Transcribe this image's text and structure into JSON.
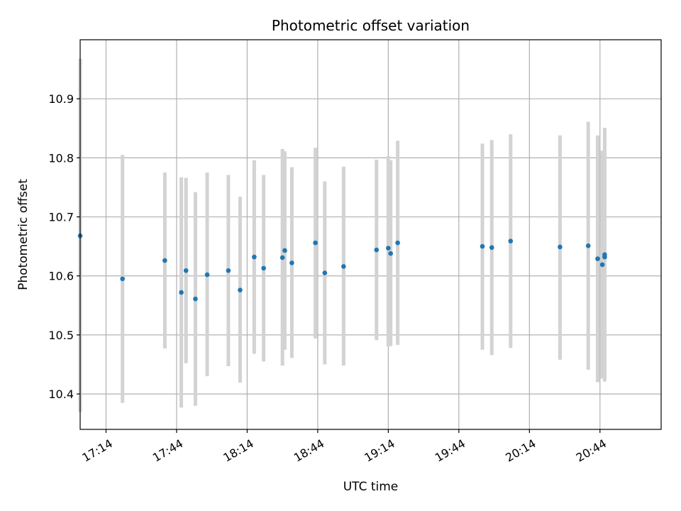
{
  "chart_data": {
    "type": "scatter",
    "title": "Photometric offset variation",
    "xlabel": "UTC time",
    "ylabel": "Photometric offset",
    "x_ticks": [
      "17:14",
      "17:44",
      "18:14",
      "18:44",
      "19:14",
      "19:44",
      "20:14",
      "20:44"
    ],
    "y_ticks": [
      "10.4",
      "10.5",
      "10.6",
      "10.7",
      "10.8",
      "10.9"
    ],
    "xlim": [
      "17:03",
      "21:10"
    ],
    "ylim": [
      10.34,
      11.0
    ],
    "grid": true,
    "colors": {
      "point": "#1f77b4",
      "errorbar": "#d3d3d3",
      "grid": "#b0b0b0"
    },
    "points": [
      {
        "t": "17:03",
        "y": 10.668,
        "low": 10.369,
        "high": 10.968
      },
      {
        "t": "17:21",
        "y": 10.595,
        "low": 10.385,
        "high": 10.805
      },
      {
        "t": "17:39",
        "y": 10.626,
        "low": 10.477,
        "high": 10.775
      },
      {
        "t": "17:46",
        "y": 10.572,
        "low": 10.377,
        "high": 10.767
      },
      {
        "t": "17:48",
        "y": 10.609,
        "low": 10.452,
        "high": 10.766
      },
      {
        "t": "17:52",
        "y": 10.561,
        "low": 10.38,
        "high": 10.742
      },
      {
        "t": "17:57",
        "y": 10.602,
        "low": 10.43,
        "high": 10.775
      },
      {
        "t": "18:06",
        "y": 10.609,
        "low": 10.447,
        "high": 10.771
      },
      {
        "t": "18:11",
        "y": 10.576,
        "low": 10.419,
        "high": 10.734
      },
      {
        "t": "18:17",
        "y": 10.632,
        "low": 10.468,
        "high": 10.796
      },
      {
        "t": "18:21",
        "y": 10.613,
        "low": 10.455,
        "high": 10.771
      },
      {
        "t": "18:29",
        "y": 10.631,
        "low": 10.448,
        "high": 10.815
      },
      {
        "t": "18:30",
        "y": 10.643,
        "low": 10.475,
        "high": 10.811
      },
      {
        "t": "18:33",
        "y": 10.622,
        "low": 10.461,
        "high": 10.784
      },
      {
        "t": "18:43",
        "y": 10.656,
        "low": 10.494,
        "high": 10.817
      },
      {
        "t": "18:47",
        "y": 10.605,
        "low": 10.45,
        "high": 10.76
      },
      {
        "t": "18:55",
        "y": 10.616,
        "low": 10.448,
        "high": 10.785
      },
      {
        "t": "19:09",
        "y": 10.644,
        "low": 10.491,
        "high": 10.797
      },
      {
        "t": "19:14",
        "y": 10.647,
        "low": 10.481,
        "high": 10.803
      },
      {
        "t": "19:15",
        "y": 10.638,
        "low": 10.481,
        "high": 10.796
      },
      {
        "t": "19:18",
        "y": 10.656,
        "low": 10.483,
        "high": 10.829
      },
      {
        "t": "19:54",
        "y": 10.65,
        "low": 10.475,
        "high": 10.824
      },
      {
        "t": "19:58",
        "y": 10.648,
        "low": 10.466,
        "high": 10.83
      },
      {
        "t": "20:06",
        "y": 10.659,
        "low": 10.478,
        "high": 10.84
      },
      {
        "t": "20:27",
        "y": 10.649,
        "low": 10.458,
        "high": 10.838
      },
      {
        "t": "20:39",
        "y": 10.651,
        "low": 10.441,
        "high": 10.861
      },
      {
        "t": "20:43",
        "y": 10.629,
        "low": 10.42,
        "high": 10.838
      },
      {
        "t": "20:45",
        "y": 10.619,
        "low": 10.426,
        "high": 10.812
      },
      {
        "t": "20:46",
        "y": 10.636,
        "low": 10.421,
        "high": 10.851
      },
      {
        "t": "20:46",
        "y": 10.632,
        "low": 10.427,
        "high": 10.837
      }
    ]
  }
}
